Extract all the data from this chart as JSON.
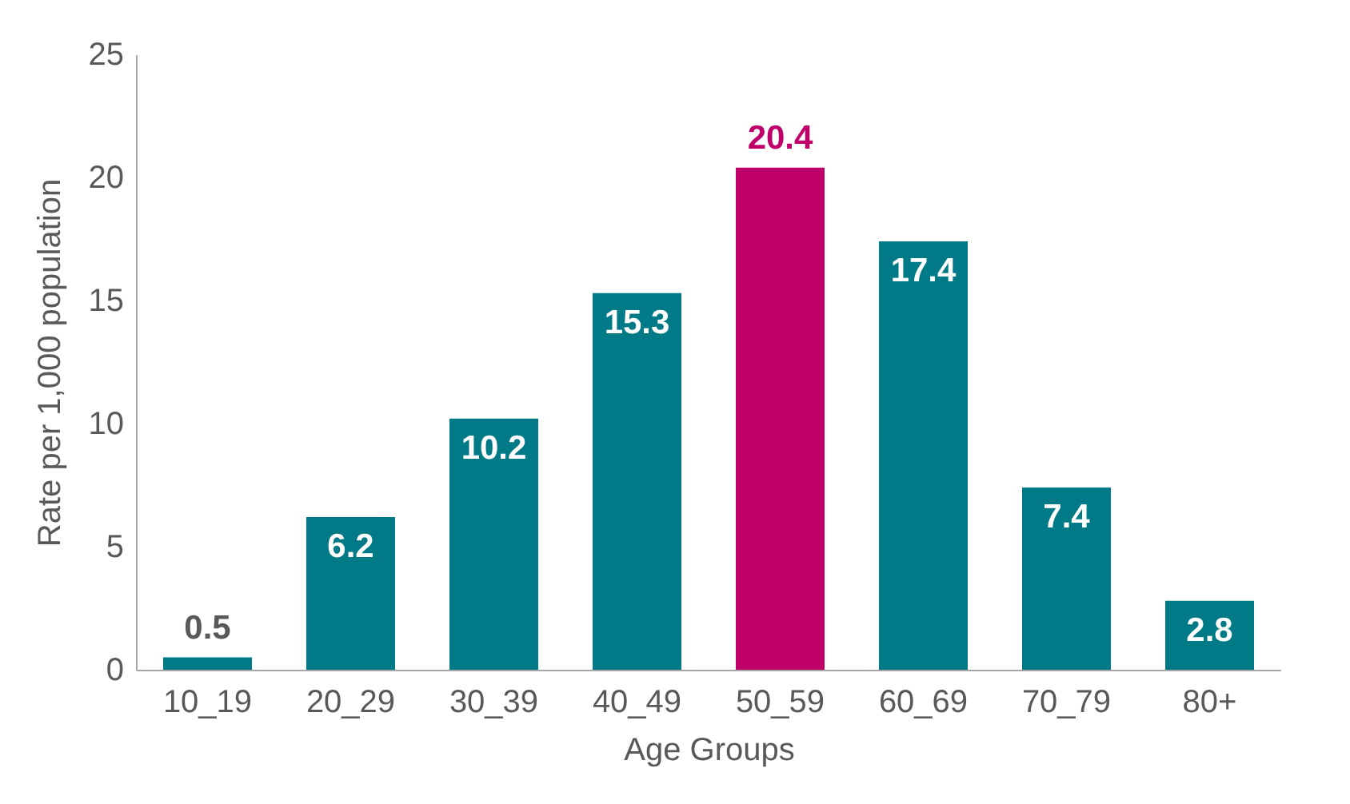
{
  "chart_data": {
    "type": "bar",
    "xlabel": "Age Groups",
    "ylabel": "Rate per 1,000 population",
    "categories": [
      "10_19",
      "20_29",
      "30_39",
      "40_49",
      "50_59",
      "60_69",
      "70_79",
      "80+"
    ],
    "values": [
      0.5,
      6.2,
      10.2,
      15.3,
      20.4,
      17.4,
      7.4,
      2.8
    ],
    "colors": [
      "#007a87",
      "#007a87",
      "#007a87",
      "#007a87",
      "#c0006a",
      "#007a87",
      "#007a87",
      "#007a87"
    ],
    "ylim": [
      0,
      25
    ],
    "yticks": [
      0,
      5,
      10,
      15,
      20,
      25
    ],
    "grid": false,
    "data_labels": true
  }
}
